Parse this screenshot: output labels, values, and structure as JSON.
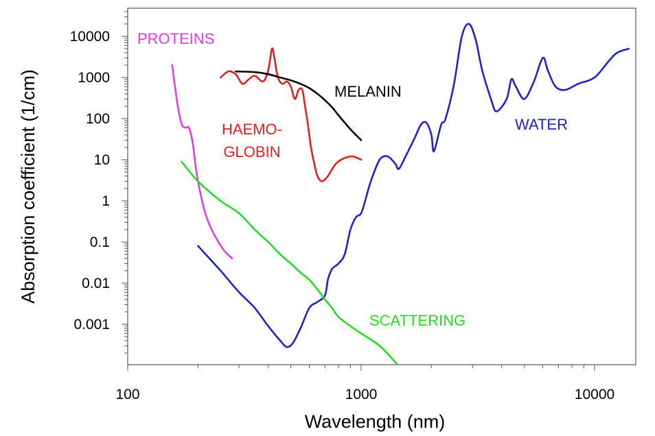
{
  "chart_data": {
    "type": "line",
    "title": "",
    "xlabel": "Wavelength (nm)",
    "ylabel": "Absorption coefficient (1/cm)",
    "x_scale": "log",
    "y_scale": "log",
    "xlim": [
      100,
      15000
    ],
    "ylim": [
      5e-05,
      50000
    ],
    "x_ticks": [
      {
        "value": 100,
        "label": "100"
      },
      {
        "value": 1000,
        "label": "1000"
      },
      {
        "value": 10000,
        "label": "10000"
      }
    ],
    "y_ticks": [
      {
        "value": 0.001,
        "label": "0.001"
      },
      {
        "value": 0.01,
        "label": "0.01"
      },
      {
        "value": 0.1,
        "label": "0.1"
      },
      {
        "value": 1,
        "label": "1"
      },
      {
        "value": 10,
        "label": "10"
      },
      {
        "value": 100,
        "label": "100"
      },
      {
        "value": 1000,
        "label": "1000"
      },
      {
        "value": 10000,
        "label": "10000"
      }
    ],
    "grid": false,
    "legend": "none",
    "series": [
      {
        "label_lines": [
          "PROTEINS"
        ],
        "color": "#e23ce2",
        "points": [
          [
            155,
            2000
          ],
          [
            163,
            250
          ],
          [
            170,
            75
          ],
          [
            177,
            60
          ],
          [
            183,
            60
          ],
          [
            190,
            25
          ],
          [
            197,
            5
          ],
          [
            205,
            1.5
          ],
          [
            215,
            0.5
          ],
          [
            225,
            0.25
          ],
          [
            240,
            0.12
          ],
          [
            260,
            0.06
          ],
          [
            280,
            0.04
          ]
        ]
      },
      {
        "label_lines": [
          "HAEMO-",
          "GLOBIN"
        ],
        "color": "#e02020",
        "points": [
          [
            250,
            1000
          ],
          [
            270,
            1400
          ],
          [
            290,
            1200
          ],
          [
            310,
            700
          ],
          [
            330,
            900
          ],
          [
            350,
            1100
          ],
          [
            380,
            800
          ],
          [
            400,
            1500
          ],
          [
            415,
            5000
          ],
          [
            425,
            3000
          ],
          [
            440,
            1000
          ],
          [
            460,
            700
          ],
          [
            480,
            800
          ],
          [
            500,
            600
          ],
          [
            520,
            300
          ],
          [
            540,
            500
          ],
          [
            560,
            500
          ],
          [
            575,
            200
          ],
          [
            590,
            80
          ],
          [
            610,
            20
          ],
          [
            630,
            8
          ],
          [
            650,
            4
          ],
          [
            680,
            3
          ],
          [
            720,
            4
          ],
          [
            780,
            8
          ],
          [
            850,
            11
          ],
          [
            920,
            12
          ],
          [
            1000,
            10
          ]
        ]
      },
      {
        "label_lines": [
          "MELANIN"
        ],
        "color": "#000000",
        "points": [
          [
            290,
            1400
          ],
          [
            350,
            1350
          ],
          [
            400,
            1200
          ],
          [
            450,
            1000
          ],
          [
            500,
            850
          ],
          [
            550,
            700
          ],
          [
            600,
            550
          ],
          [
            650,
            400
          ],
          [
            700,
            280
          ],
          [
            750,
            190
          ],
          [
            800,
            120
          ],
          [
            850,
            80
          ],
          [
            900,
            55
          ],
          [
            950,
            40
          ],
          [
            1000,
            30
          ]
        ]
      },
      {
        "label_lines": [
          "WATER"
        ],
        "color": "#2020cc",
        "points": [
          [
            200,
            0.08
          ],
          [
            250,
            0.02
          ],
          [
            300,
            0.006
          ],
          [
            350,
            0.0025
          ],
          [
            400,
            0.0009
          ],
          [
            450,
            0.0004
          ],
          [
            480,
            0.00028
          ],
          [
            510,
            0.00035
          ],
          [
            550,
            0.0008
          ],
          [
            600,
            0.0025
          ],
          [
            650,
            0.0035
          ],
          [
            700,
            0.005
          ],
          [
            720,
            0.012
          ],
          [
            750,
            0.022
          ],
          [
            800,
            0.03
          ],
          [
            850,
            0.05
          ],
          [
            900,
            0.2
          ],
          [
            950,
            0.4
          ],
          [
            1000,
            0.5
          ],
          [
            1050,
            1.2
          ],
          [
            1100,
            3
          ],
          [
            1200,
            10
          ],
          [
            1300,
            12
          ],
          [
            1400,
            8
          ],
          [
            1450,
            6
          ],
          [
            1550,
            12
          ],
          [
            1700,
            35
          ],
          [
            1800,
            70
          ],
          [
            1900,
            80
          ],
          [
            2000,
            40
          ],
          [
            2050,
            16
          ],
          [
            2200,
            70
          ],
          [
            2300,
            100
          ],
          [
            2500,
            700
          ],
          [
            2700,
            10000
          ],
          [
            2900,
            20000
          ],
          [
            3100,
            8000
          ],
          [
            3300,
            1500
          ],
          [
            3600,
            300
          ],
          [
            3800,
            150
          ],
          [
            4200,
            300
          ],
          [
            4400,
            900
          ],
          [
            4600,
            600
          ],
          [
            5000,
            300
          ],
          [
            5500,
            800
          ],
          [
            6000,
            3000
          ],
          [
            6300,
            1500
          ],
          [
            6800,
            600
          ],
          [
            7500,
            500
          ],
          [
            8500,
            700
          ],
          [
            10000,
            1000
          ],
          [
            11500,
            2500
          ],
          [
            12500,
            4000
          ],
          [
            14000,
            5000
          ]
        ]
      },
      {
        "label_lines": [
          "SCATTERING"
        ],
        "color": "#22dd22",
        "points": [
          [
            170,
            9
          ],
          [
            200,
            3
          ],
          [
            250,
            1
          ],
          [
            300,
            0.5
          ],
          [
            350,
            0.2
          ],
          [
            400,
            0.1
          ],
          [
            450,
            0.05
          ],
          [
            500,
            0.03
          ],
          [
            550,
            0.018
          ],
          [
            600,
            0.012
          ],
          [
            650,
            0.007
          ],
          [
            700,
            0.004
          ],
          [
            750,
            0.0025
          ],
          [
            800,
            0.0015
          ],
          [
            900,
            0.0009
          ],
          [
            1000,
            0.0006
          ],
          [
            1200,
            0.0003
          ],
          [
            1400,
            0.00012
          ],
          [
            1600,
            5e-05
          ]
        ]
      }
    ]
  }
}
